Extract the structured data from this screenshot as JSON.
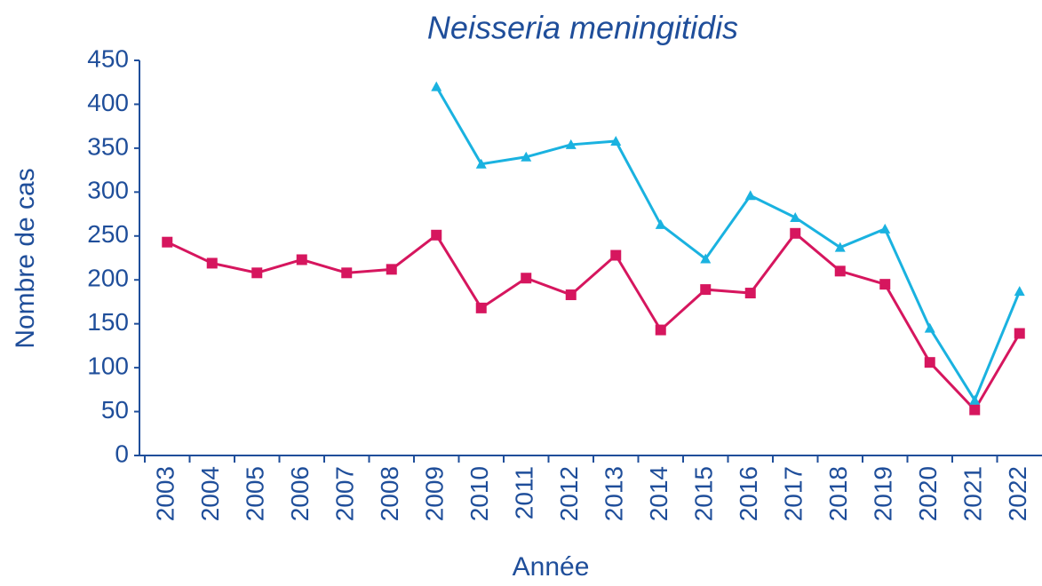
{
  "chart_data": {
    "type": "line",
    "title": "Neisseria meningitidis",
    "x_label": "Année",
    "y_label": "Nombre de cas",
    "categories": [
      "2003",
      "2004",
      "2005",
      "2006",
      "2007",
      "2008",
      "2009",
      "2010",
      "2011",
      "2012",
      "2013",
      "2014",
      "2015",
      "2016",
      "2017",
      "2018",
      "2019",
      "2020",
      "2021",
      "2022"
    ],
    "series": [
      {
        "color": "#d6165e",
        "marker": "square",
        "values": [
          243,
          219,
          208,
          223,
          208,
          212,
          251,
          168,
          202,
          183,
          228,
          143,
          189,
          185,
          253,
          210,
          195,
          106,
          52,
          139
        ]
      },
      {
        "color": "#1ab2e0",
        "marker": "triangle",
        "values": [
          null,
          null,
          null,
          null,
          null,
          null,
          420,
          332,
          340,
          354,
          358,
          263,
          224,
          296,
          271,
          237,
          258,
          145,
          63,
          187
        ]
      }
    ],
    "ylim": [
      0,
      450
    ],
    "yticks": [
      0,
      50,
      100,
      150,
      200,
      250,
      300,
      350,
      400,
      450
    ],
    "grid": false
  }
}
